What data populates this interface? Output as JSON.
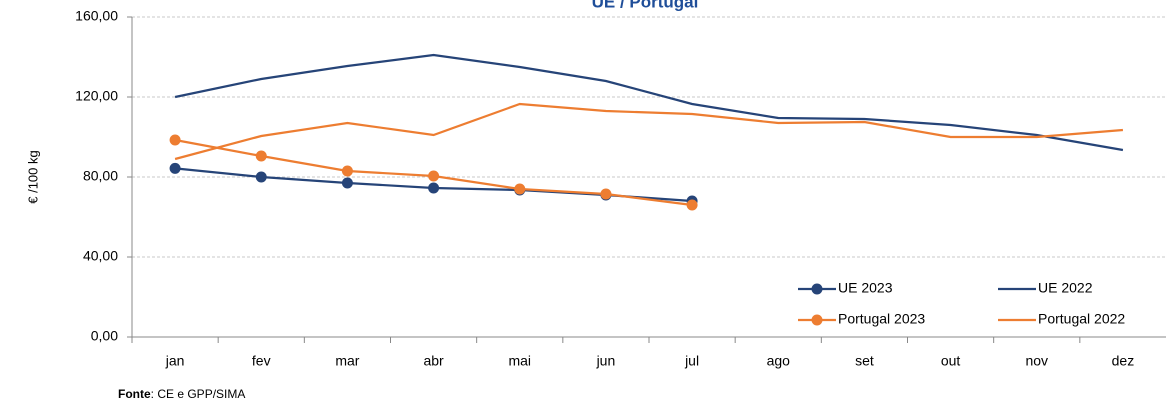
{
  "chart_data": {
    "type": "line",
    "title": "UE / Portugal",
    "y_label": "€ /100 kg",
    "categories": [
      "jan",
      "fev",
      "mar",
      "abr",
      "mai",
      "jun",
      "jul",
      "ago",
      "set",
      "out",
      "nov",
      "dez"
    ],
    "series": [
      {
        "name": "UE 2023",
        "color": "#264478",
        "marker": true,
        "values": [
          84.3,
          80,
          77,
          74.5,
          73.5,
          71,
          68,
          null,
          null,
          null,
          null,
          null
        ]
      },
      {
        "name": "UE 2022",
        "color": "#264478",
        "marker": false,
        "values": [
          120,
          129,
          135.5,
          141,
          135,
          128,
          116.5,
          109.5,
          109,
          106,
          101,
          93.5
        ]
      },
      {
        "name": "Portugal 2023",
        "color": "#ED7D31",
        "marker": true,
        "values": [
          98.5,
          90.5,
          83,
          80.5,
          74,
          71.5,
          66,
          null,
          null,
          null,
          null,
          null
        ]
      },
      {
        "name": "Portugal 2022",
        "color": "#ED7D31",
        "marker": false,
        "values": [
          89,
          100.5,
          107,
          101,
          116.5,
          113,
          111.5,
          107,
          107.5,
          100,
          100,
          103.5
        ]
      }
    ],
    "ylim": [
      0,
      160
    ],
    "yticks": [
      {
        "value": 0,
        "label": "0,00"
      },
      {
        "value": 40,
        "label": "40,00"
      },
      {
        "value": 80,
        "label": "80,00"
      },
      {
        "value": 120,
        "label": "120,00"
      },
      {
        "value": 160,
        "label": "160,00"
      }
    ],
    "grid": true,
    "legend": "lower right",
    "source_label": "Fonte",
    "source": ": CE e GPP/SIMA"
  }
}
